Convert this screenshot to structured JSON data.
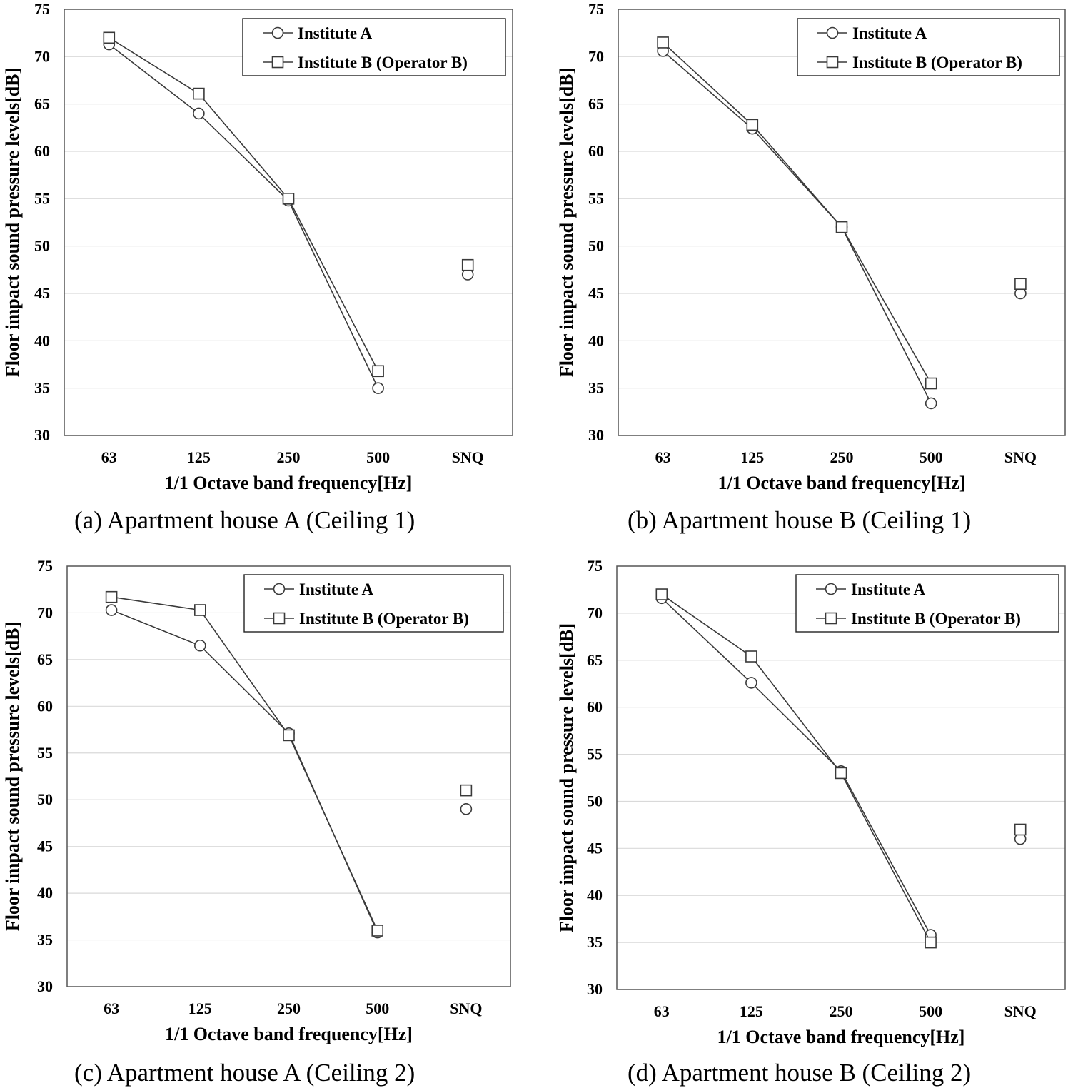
{
  "chart_data": [
    {
      "type": "line",
      "caption": "(a) Apartment house A (Ceiling 1)",
      "xlabel": "1/1 Octave band frequency[Hz]",
      "ylabel": "Floor impact sound pressure levels[dB]",
      "ylim": [
        30,
        75
      ],
      "yticks": [
        "30",
        "35",
        "40",
        "45",
        "50",
        "55",
        "60",
        "65",
        "70",
        "75"
      ],
      "categories": [
        "63",
        "125",
        "250",
        "500",
        "SNQ"
      ],
      "grid": "horizontal",
      "legend": "top-right",
      "series": [
        {
          "name": "Institute A",
          "marker": "circle",
          "values": [
            71.3,
            64.0,
            54.8,
            35.0,
            47.0
          ]
        },
        {
          "name": "Institute B (Operator B)",
          "marker": "square",
          "values": [
            72.0,
            66.1,
            55.0,
            36.8,
            48.0
          ]
        }
      ]
    },
    {
      "type": "line",
      "caption": "(b) Apartment house B (Ceiling 1)",
      "xlabel": "1/1 Octave band frequency[Hz]",
      "ylabel": "Floor impact sound pressure levels[dB]",
      "ylim": [
        30,
        75
      ],
      "yticks": [
        "30",
        "35",
        "40",
        "45",
        "50",
        "55",
        "60",
        "65",
        "70",
        "75"
      ],
      "categories": [
        "63",
        "125",
        "250",
        "500",
        "SNQ"
      ],
      "grid": "horizontal",
      "legend": "top-right",
      "series": [
        {
          "name": "Institute A",
          "marker": "circle",
          "values": [
            70.6,
            62.4,
            52.0,
            33.4,
            45.0
          ]
        },
        {
          "name": "Institute B (Operator B)",
          "marker": "square",
          "values": [
            71.5,
            62.8,
            52.0,
            35.5,
            46.0
          ]
        }
      ]
    },
    {
      "type": "line",
      "caption": "(c) Apartment house A (Ceiling 2)",
      "xlabel": "1/1 Octave band frequency[Hz]",
      "ylabel": "Floor impact sound pressure levels[dB]",
      "ylim": [
        30,
        75
      ],
      "yticks": [
        "30",
        "35",
        "40",
        "45",
        "50",
        "55",
        "60",
        "65",
        "70",
        "75"
      ],
      "categories": [
        "63",
        "125",
        "250",
        "500",
        "SNQ"
      ],
      "grid": "horizontal",
      "legend": "top-right",
      "series": [
        {
          "name": "Institute A",
          "marker": "circle",
          "values": [
            70.3,
            66.5,
            57.1,
            35.8,
            49.0
          ]
        },
        {
          "name": "Institute B (Operator B)",
          "marker": "square",
          "values": [
            71.7,
            70.3,
            56.9,
            36.0,
            51.0
          ]
        }
      ]
    },
    {
      "type": "line",
      "caption": "(d) Apartment house B (Ceiling 2)",
      "xlabel": "1/1 Octave band frequency[Hz]",
      "ylabel": "Floor impact sound pressure levels[dB]",
      "ylim": [
        30,
        75
      ],
      "yticks": [
        "30",
        "35",
        "40",
        "45",
        "50",
        "55",
        "60",
        "65",
        "70",
        "75"
      ],
      "categories": [
        "63",
        "125",
        "250",
        "500",
        "SNQ"
      ],
      "grid": "horizontal",
      "legend": "top-right",
      "series": [
        {
          "name": "Institute A",
          "marker": "circle",
          "values": [
            71.6,
            62.6,
            53.2,
            35.8,
            46.0
          ]
        },
        {
          "name": "Institute B (Operator B)",
          "marker": "square",
          "values": [
            72.0,
            65.4,
            53.0,
            35.0,
            47.0
          ]
        }
      ]
    }
  ]
}
